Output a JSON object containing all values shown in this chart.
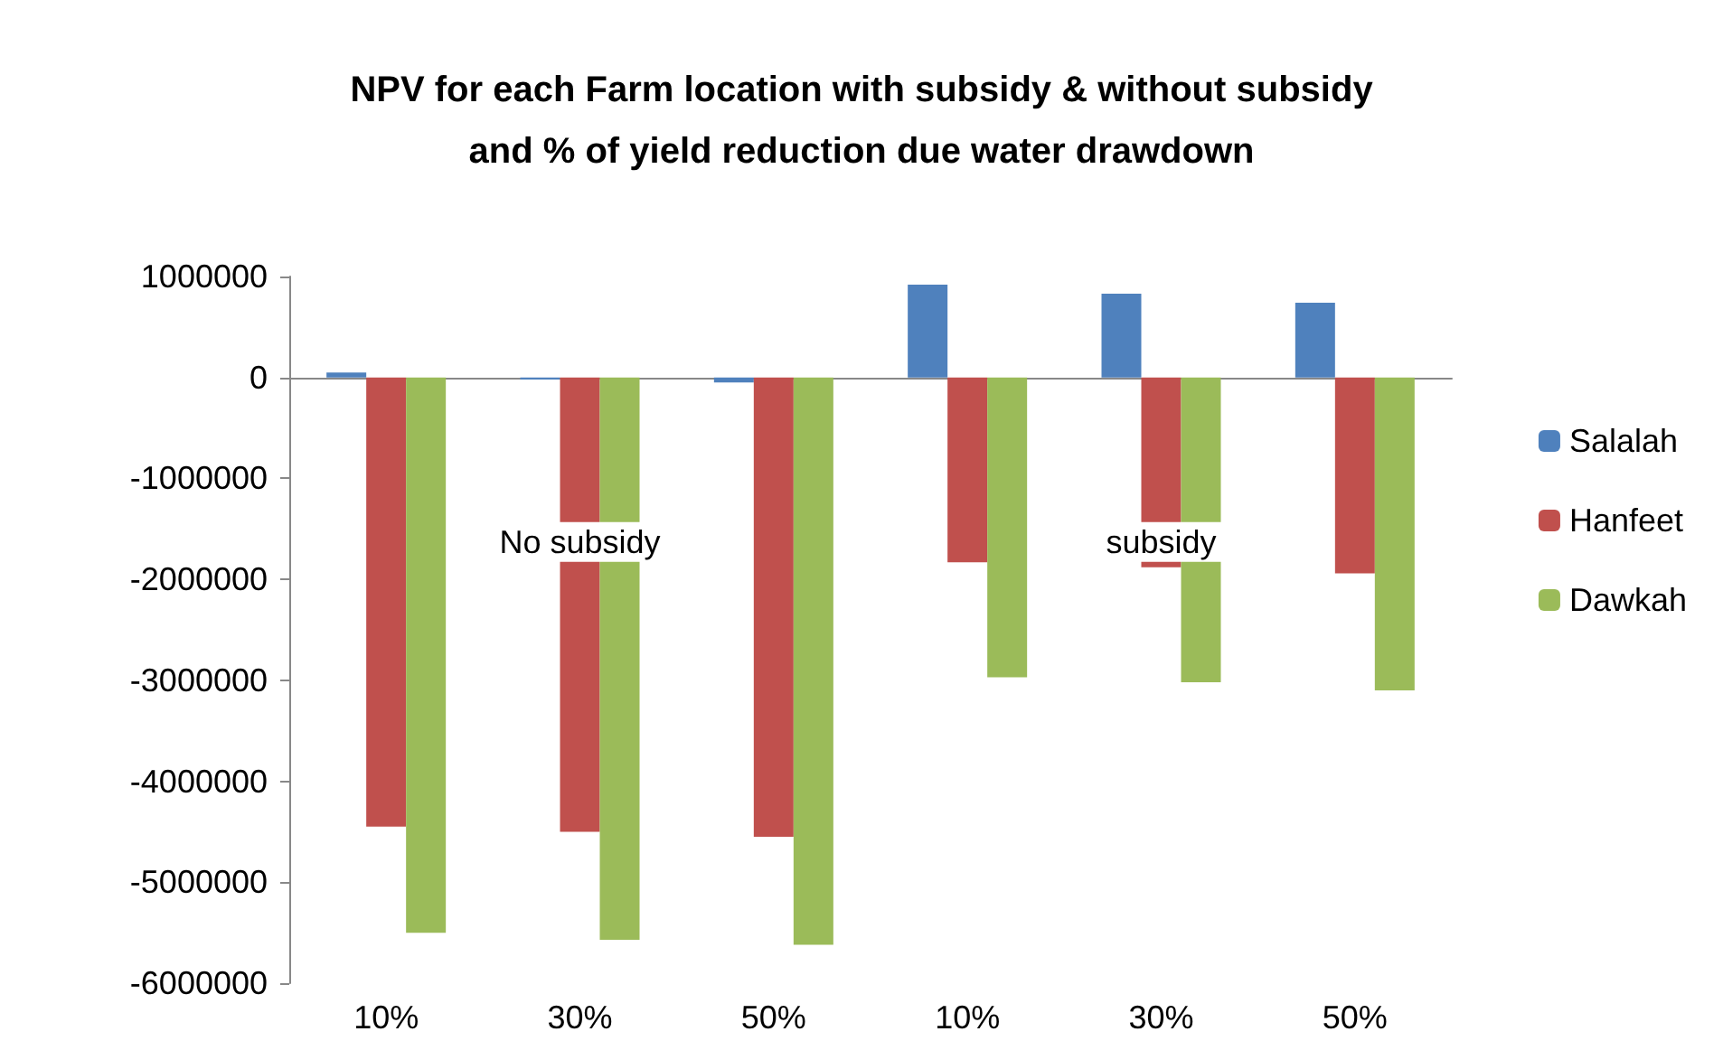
{
  "chart_data": {
    "type": "bar",
    "title": "NPV for each Farm location with subsidy & without subsidy\nand % of yield reduction due water drawdown",
    "categories": [
      "10%",
      "30%",
      "50%",
      "10%",
      "30%",
      "50%"
    ],
    "series": [
      {
        "name": "Salalah",
        "color": "#4f81bd",
        "values": [
          50000,
          -20000,
          -50000,
          920000,
          830000,
          740000
        ]
      },
      {
        "name": "Hanfeet",
        "color": "#c0504d",
        "values": [
          -4450000,
          -4500000,
          -4550000,
          -1830000,
          -1880000,
          -1940000
        ]
      },
      {
        "name": "Dawkah",
        "color": "#9bbb59",
        "values": [
          -5500000,
          -5570000,
          -5620000,
          -2970000,
          -3020000,
          -3100000
        ]
      }
    ],
    "ylim": [
      -6000000,
      1000000
    ],
    "yticks": [
      -6000000,
      -5000000,
      -4000000,
      -3000000,
      -2000000,
      -1000000,
      0,
      1000000
    ],
    "annotations": [
      "No subsidy",
      "subsidy"
    ],
    "legend": "right"
  }
}
